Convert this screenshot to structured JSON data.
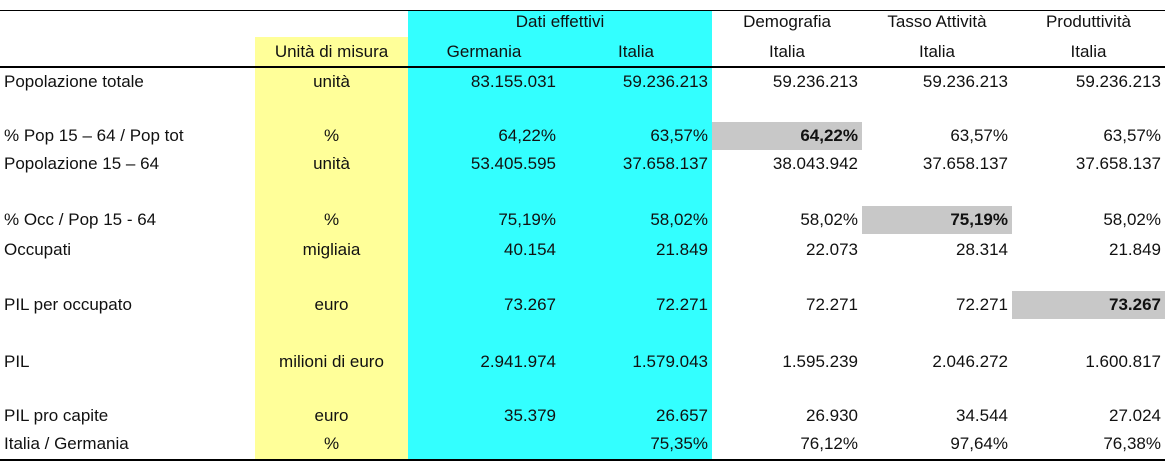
{
  "table": {
    "header_rows": [
      [
        null,
        null,
        "Dati effettivi",
        null,
        "Demografia",
        "Tasso Attività",
        "Produttività"
      ],
      [
        null,
        "Unità di misura",
        "Germania",
        "Italia",
        "Italia",
        "Italia",
        "Italia"
      ]
    ],
    "rows": [
      [
        "Popolazione totale",
        "unità",
        "83.155.031",
        "59.236.213",
        "59.236.213",
        "59.236.213",
        "59.236.213"
      ],
      [
        "% Pop 15 – 64 / Pop tot",
        "%",
        "64,22%",
        "63,57%",
        "64,22%",
        "63,57%",
        "63,57%"
      ],
      [
        "Popolazione 15 – 64",
        "unità",
        "53.405.595",
        "37.658.137",
        "38.043.942",
        "37.658.137",
        "37.658.137"
      ],
      [
        "% Occ / Pop 15 - 64",
        "%",
        "75,19%",
        "58,02%",
        "58,02%",
        "75,19%",
        "58,02%"
      ],
      [
        "Occupati",
        "migliaia",
        "40.154",
        "21.849",
        "22.073",
        "28.314",
        "21.849"
      ],
      [
        "PIL per occupato",
        "euro",
        "73.267",
        "72.271",
        "72.271",
        "72.271",
        "73.267"
      ],
      [
        "PIL",
        "milioni di euro",
        "2.941.974",
        "1.579.043",
        "1.595.239",
        "2.046.272",
        "1.600.817"
      ],
      [
        "PIL pro capite",
        "euro",
        "35.379",
        "26.657",
        "26.930",
        "34.544",
        "27.024"
      ],
      [
        "Italia / Germania",
        "%",
        null,
        "75,35%",
        "76,12%",
        "97,64%",
        "76,38%"
      ]
    ]
  }
}
